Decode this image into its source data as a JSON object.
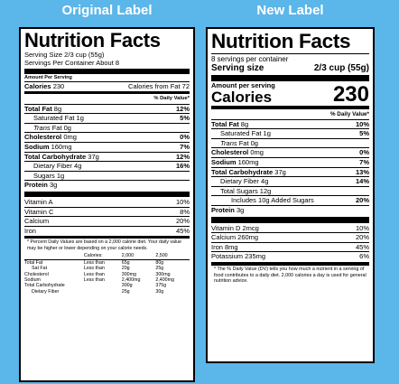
{
  "headings": {
    "original": "Original Label",
    "new": "New Label"
  },
  "original": {
    "title": "Nutrition Facts",
    "serving_size": "Serving Size 2/3 cup (55g)",
    "servings_per_container": "Servings Per Container About 8",
    "amount_per_serving": "Amount Per Serving",
    "calories_label": "Calories",
    "calories_value": "230",
    "calories_from_fat": "Calories from Fat 72",
    "daily_value_header": "% Daily Value*",
    "nutrients": [
      {
        "label": "Total Fat",
        "amount": "8g",
        "dv": "12%"
      },
      {
        "label": "Saturated Fat",
        "amount": "1g",
        "dv": "5%"
      },
      {
        "label": "Trans",
        "amount": "Fat 0g",
        "dv": ""
      },
      {
        "label": "Cholesterol",
        "amount": "0mg",
        "dv": "0%"
      },
      {
        "label": "Sodium",
        "amount": "160mg",
        "dv": "7%"
      },
      {
        "label": "Total Carbohydrate",
        "amount": "37g",
        "dv": "12%"
      },
      {
        "label": "Dietary Fiber",
        "amount": "4g",
        "dv": "16%"
      },
      {
        "label": "Sugars",
        "amount": "1g",
        "dv": ""
      },
      {
        "label": "Protein",
        "amount": "3g",
        "dv": ""
      }
    ],
    "vitamins": [
      {
        "label": "Vitamin A",
        "dv": "10%"
      },
      {
        "label": "Vitamin C",
        "dv": "8%"
      },
      {
        "label": "Calcium",
        "dv": "20%"
      },
      {
        "label": "Iron",
        "dv": "45%"
      }
    ],
    "footnote": "* Percent Daily Values are based on a 2,000 calorie diet. Your daily value may be higher or lower depending on your calorie needs.",
    "footnote_table": {
      "header": [
        "",
        "Calories:",
        "2,000",
        "2,500"
      ],
      "rows": [
        [
          "Total Fat",
          "Less than",
          "65g",
          "80g"
        ],
        [
          "Sat Fat",
          "Less than",
          "20g",
          "25g"
        ],
        [
          "Cholesterol",
          "Less than",
          "300mg",
          "300mg"
        ],
        [
          "Sodium",
          "Less than",
          "2,400mg",
          "2,400mg"
        ],
        [
          "Total Carbohydrate",
          "",
          "300g",
          "375g"
        ],
        [
          "Dietary Fiber",
          "",
          "25g",
          "30g"
        ]
      ]
    }
  },
  "new": {
    "title": "Nutrition Facts",
    "servings_per_container": "8 servings per container",
    "serving_size_label": "Serving size",
    "serving_size_value": "2/3 cup (55g)",
    "amount_per_serving": "Amount per serving",
    "calories_label": "Calories",
    "calories_value": "230",
    "daily_value_header": "% Daily Value*",
    "nutrients": [
      {
        "label": "Total Fat",
        "amount": "8g",
        "dv": "10%"
      },
      {
        "label": "Saturated Fat",
        "amount": "1g",
        "dv": "5%"
      },
      {
        "label": "Trans",
        "amount": "Fat 0g",
        "dv": ""
      },
      {
        "label": "Cholesterol",
        "amount": "0mg",
        "dv": "0%"
      },
      {
        "label": "Sodium",
        "amount": "160mg",
        "dv": "7%"
      },
      {
        "label": "Total Carbohydrate",
        "amount": "37g",
        "dv": "13%"
      },
      {
        "label": "Dietary Fiber",
        "amount": "4g",
        "dv": "14%"
      },
      {
        "label": "Total Sugars",
        "amount": "12g",
        "dv": ""
      },
      {
        "label": "Includes 10g Added Sugars",
        "amount": "",
        "dv": "20%"
      },
      {
        "label": "Protein",
        "amount": "3g",
        "dv": ""
      }
    ],
    "vitamins": [
      {
        "label": "Vitamin D 2mcg",
        "dv": "10%"
      },
      {
        "label": "Calcium 260mg",
        "dv": "20%"
      },
      {
        "label": "Iron 8mg",
        "dv": "45%"
      },
      {
        "label": "Potassium 235mg",
        "dv": "6%"
      }
    ],
    "footnote": "* The % Daily Value (DV) tells you how much a nutrient in a serving of food contributes to a daily diet. 2,000 calories a day is used for general nutrition advice."
  }
}
